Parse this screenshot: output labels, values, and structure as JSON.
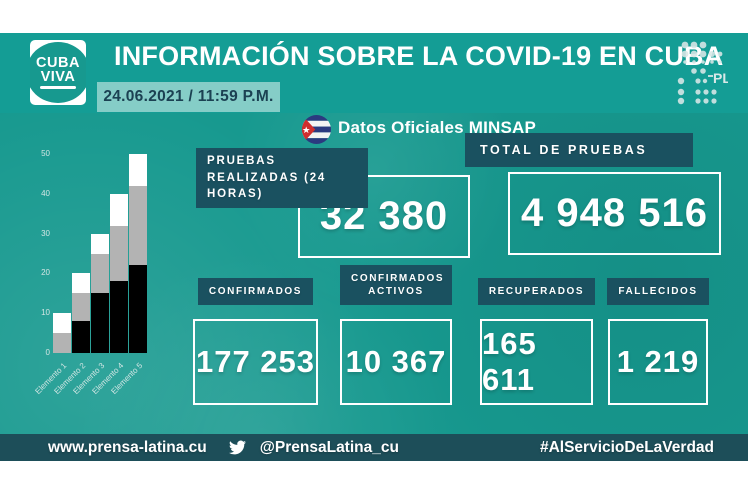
{
  "header": {
    "logo_line1": "CUBA",
    "logo_line2": "VIVA",
    "title": "INFORMACIÓN SOBRE LA COVID-19 EN CUBA",
    "datetime": "24.06.2021 / 11:59 P.M.",
    "source_label": "Datos Oficiales MINSAP",
    "flag_icon": "cuba-flag-icon",
    "agency_icon": "prensa-latina-dot-matrix-logo",
    "agency_initials": "-PL"
  },
  "stats": {
    "pruebas_24h": {
      "label": "PRUEBAS REALIZADAS (24 HORAS)",
      "value": "32 380"
    },
    "total_pruebas": {
      "label": "TOTAL DE PRUEBAS",
      "value": "4 948 516"
    },
    "confirmados": {
      "label": "CONFIRMADOS",
      "value": "177 253"
    },
    "confirmados_activos": {
      "label": "CONFIRMADOS ACTIVOS",
      "value": "10 367"
    },
    "recuperados": {
      "label": "RECUPERADOS",
      "value": "165 611"
    },
    "fallecidos": {
      "label": "FALLECIDOS",
      "value": "1 219"
    }
  },
  "footer": {
    "website": "www.prensa-latina.cu",
    "twitter_icon": "twitter-bird-icon",
    "twitter_handle": "@PrensaLatina_cu",
    "hashtag": "#AlServicioDeLaVerdad"
  },
  "chart_data": {
    "type": "bar",
    "stacked": true,
    "title": "",
    "xlabel": "",
    "ylabel": "",
    "categories": [
      "Elemento 1",
      "Elemento 2",
      "Elemento 3",
      "Elemento 4",
      "Elemento 5"
    ],
    "series": [
      {
        "name": "segment-black",
        "color": "#000000",
        "values": [
          0,
          8,
          15,
          18,
          22
        ]
      },
      {
        "name": "segment-gray",
        "color": "#b3b3b3",
        "values": [
          5,
          7,
          10,
          14,
          20
        ]
      },
      {
        "name": "segment-white",
        "color": "#ffffff",
        "values": [
          5,
          5,
          5,
          8,
          8
        ]
      }
    ],
    "totals": [
      10,
      20,
      30,
      40,
      50
    ],
    "ylim": [
      0,
      50
    ],
    "yticks": [
      0,
      10,
      20,
      30,
      40,
      50
    ],
    "grid": false,
    "legend": "none"
  },
  "colors": {
    "poster_teal": "#17998f",
    "header_teal": "#149d95",
    "dark_panel": "#1a5160",
    "footer_bar": "#1d4e59",
    "date_chip_bg": "#85cdc7",
    "date_chip_text": "#1b4152",
    "value_text": "#ffffff",
    "flag_red": "#cf2e2e",
    "flag_blue": "#2b3a80",
    "axis_text": "#d2e6e4"
  }
}
